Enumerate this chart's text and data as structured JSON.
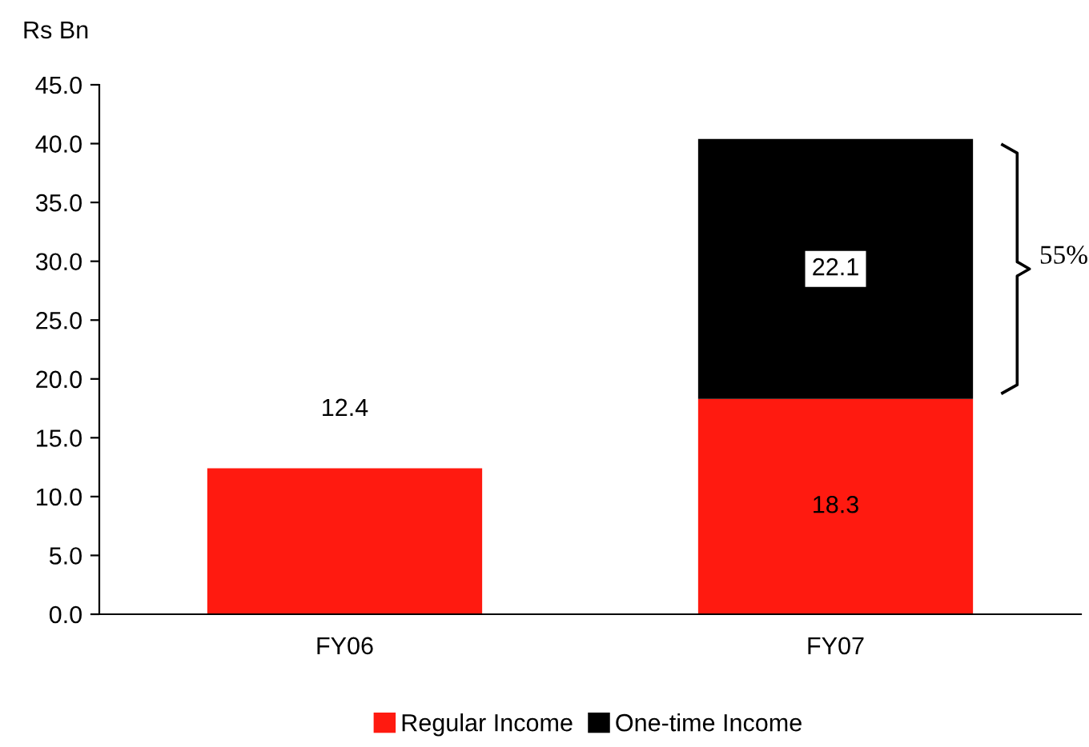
{
  "chart_data": {
    "type": "bar",
    "stacked": true,
    "ylabel": "Rs Bn",
    "categories": [
      "FY06",
      "FY07"
    ],
    "series": [
      {
        "name": "Regular Income",
        "color": "#ff1a10",
        "values": [
          12.4,
          18.3
        ]
      },
      {
        "name": "One-time Income",
        "color": "#000000",
        "values": [
          null,
          22.1
        ]
      }
    ],
    "ylim": [
      0,
      45
    ],
    "yticks": [
      {
        "value": 0,
        "label": "0.0"
      },
      {
        "value": 5,
        "label": "5.0"
      },
      {
        "value": 10,
        "label": "10.0"
      },
      {
        "value": 15,
        "label": "15.0"
      },
      {
        "value": 20,
        "label": "20.0"
      },
      {
        "value": 25,
        "label": "25.0"
      },
      {
        "value": 30,
        "label": "30.0"
      },
      {
        "value": 35,
        "label": "35.0"
      },
      {
        "value": 40,
        "label": "40.0"
      },
      {
        "value": 45,
        "label": "45.0"
      }
    ],
    "data_labels": true,
    "grid": false,
    "legend": "bottom",
    "annotations": [
      "55%"
    ]
  }
}
